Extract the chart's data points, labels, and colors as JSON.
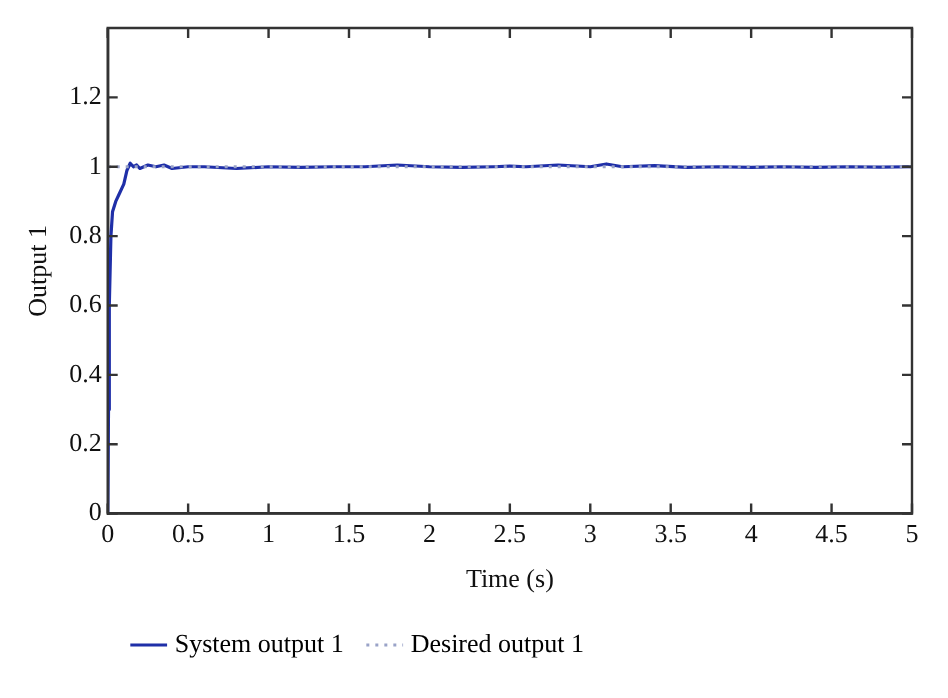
{
  "chart_data": {
    "type": "line",
    "xlabel": "Time (s)",
    "ylabel": "Output 1",
    "xlim": [
      0,
      5
    ],
    "xticks": [
      0,
      0.5,
      1,
      1.5,
      2,
      2.5,
      3,
      3.5,
      4,
      4.5,
      5
    ],
    "ylim": [
      0,
      1.4
    ],
    "yticks": [
      0,
      0.2,
      0.4,
      0.6,
      0.8,
      1,
      1.2
    ],
    "grid": false,
    "legend": "bottom left",
    "marker": "none",
    "series": [
      {
        "name": "System output 1",
        "color": "#1f2fa8",
        "line_style": "solid",
        "x": [
          0,
          0.005,
          0.01,
          0.02,
          0.03,
          0.05,
          0.07,
          0.1,
          0.12,
          0.14,
          0.16,
          0.18,
          0.2,
          0.25,
          0.3,
          0.35,
          0.4,
          0.5,
          0.6,
          0.8,
          1,
          1.2,
          1.4,
          1.6,
          1.8,
          2,
          2.2,
          2.4,
          2.5,
          2.6,
          2.8,
          3,
          3.1,
          3.2,
          3.4,
          3.6,
          3.8,
          4,
          4.2,
          4.4,
          4.6,
          4.8,
          5
        ],
        "values": [
          0,
          0.3,
          0.6,
          0.8,
          0.87,
          0.9,
          0.92,
          0.95,
          0.99,
          1.01,
          1.0,
          1.005,
          0.995,
          1.005,
          1.0,
          1.005,
          0.995,
          1.0,
          1.0,
          0.995,
          1.0,
          0.998,
          1.0,
          1.0,
          1.005,
          1.0,
          0.998,
          1.0,
          1.002,
          1.0,
          1.005,
          1.0,
          1.008,
          1.0,
          1.003,
          0.998,
          1.0,
          0.998,
          1.0,
          0.998,
          1.0,
          0.999,
          1.0
        ]
      },
      {
        "name": "Desired output 1",
        "color": "#9aa3c8",
        "line_style": "dotted",
        "x": [
          0,
          5
        ],
        "values": [
          1,
          1
        ]
      }
    ]
  }
}
